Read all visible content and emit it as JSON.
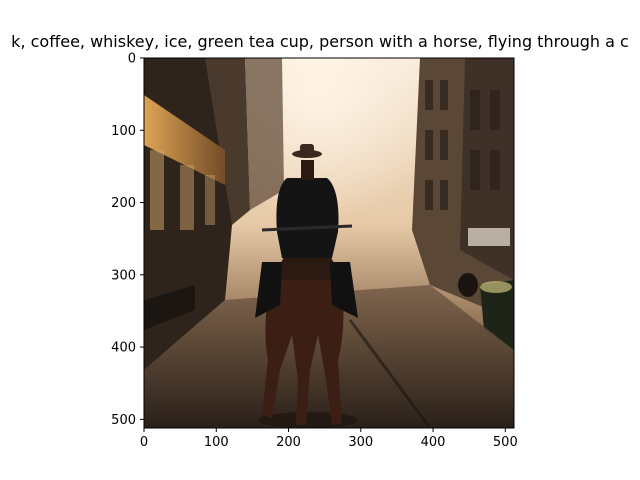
{
  "figure": {
    "title": "k,  coffee, whiskey, ice, green tea cup, person with a horse, flying through a c"
  },
  "axes": {
    "x_ticks": [
      {
        "value": 0,
        "label": "0"
      },
      {
        "value": 100,
        "label": "100"
      },
      {
        "value": 200,
        "label": "200"
      },
      {
        "value": 300,
        "label": "300"
      },
      {
        "value": 400,
        "label": "400"
      },
      {
        "value": 500,
        "label": "500"
      }
    ],
    "y_ticks": [
      {
        "value": 0,
        "label": "0"
      },
      {
        "value": 100,
        "label": "100"
      },
      {
        "value": 200,
        "label": "200"
      },
      {
        "value": 300,
        "label": "300"
      },
      {
        "value": 400,
        "label": "400"
      },
      {
        "value": 500,
        "label": "500"
      }
    ],
    "x_range": [
      0,
      512
    ],
    "y_range": [
      0,
      512
    ]
  },
  "image": {
    "subject": "cowboy on horse in foggy city street",
    "colors": {
      "fog": "#e9d3b8",
      "sky": "#f6e8d6",
      "building_dark": "#2b221c",
      "building_mid": "#5a4636",
      "street": "#3a2e25",
      "horse": "#3b1f14",
      "rider": "#121212",
      "lamp": "#f0a84a"
    }
  }
}
